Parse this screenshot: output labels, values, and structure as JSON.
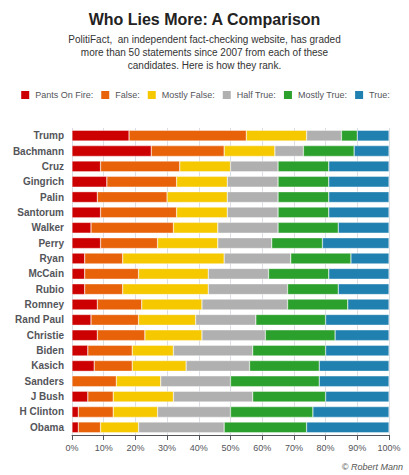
{
  "chart_data": {
    "type": "bar",
    "orientation": "horizontal",
    "stacked": true,
    "title": "Who Lies More: A Comparison",
    "subtitle": "PolitiFact,  an independent fact-checking website, has graded\nmore than 50 statements since 2007 from each of these\ncandidates. Here is how they rank.",
    "categories": [
      "Trump",
      "Bachmann",
      "Cruz",
      "Gingrich",
      "Palin",
      "Santorum",
      "Walker",
      "Perry",
      "Ryan",
      "McCain",
      "Rubio",
      "Romney",
      "Rand Paul",
      "Christie",
      "Biden",
      "Kasich",
      "Sanders",
      "J Bush",
      "H Clinton",
      "Obama"
    ],
    "series": [
      {
        "name": "Pants On Fire:",
        "color": "#cc0000",
        "values": [
          18,
          25,
          9,
          11,
          8,
          9,
          6,
          9,
          4,
          4,
          4,
          8,
          6,
          8,
          5,
          7,
          0,
          5,
          2,
          2
        ]
      },
      {
        "name": "False:",
        "color": "#e8620a",
        "values": [
          37,
          23,
          25,
          22,
          22,
          24,
          26,
          18,
          12,
          17,
          12,
          14,
          15,
          15,
          14,
          12,
          14,
          8,
          11,
          7
        ]
      },
      {
        "name": "Mostly False:",
        "color": "#f5c800",
        "values": [
          19,
          16,
          16,
          16,
          19,
          16,
          14,
          19,
          32,
          22,
          27,
          19,
          18,
          18,
          13,
          17,
          14,
          19,
          14,
          12
        ]
      },
      {
        "name": "Half True:",
        "color": "#b0b0b0",
        "values": [
          11,
          9,
          15,
          16,
          16,
          16,
          19,
          17,
          21,
          19,
          25,
          27,
          19,
          20,
          25,
          20,
          22,
          25,
          23,
          27
        ]
      },
      {
        "name": "Mostly True:",
        "color": "#2ca02c",
        "values": [
          5,
          16,
          16,
          16,
          16,
          16,
          19,
          16,
          19,
          19,
          16,
          19,
          22,
          22,
          23,
          22,
          28,
          23,
          26,
          26
        ]
      },
      {
        "name": "True:",
        "color": "#2080b0",
        "values": [
          10,
          11,
          19,
          19,
          19,
          19,
          16,
          21,
          12,
          19,
          16,
          13,
          20,
          17,
          20,
          22,
          22,
          20,
          24,
          26
        ]
      }
    ],
    "xlim": [
      0,
      100
    ],
    "xticks": [
      {
        "value": 0,
        "label": "0%"
      },
      {
        "value": 10,
        "label": "10%"
      },
      {
        "value": 20,
        "label": "20%"
      },
      {
        "value": 30,
        "label": "30%"
      },
      {
        "value": 40,
        "label": "40%"
      },
      {
        "value": 50,
        "label": "50%"
      },
      {
        "value": 60,
        "label": "60%"
      },
      {
        "value": 70,
        "label": "70%"
      },
      {
        "value": 80,
        "label": "80%"
      },
      {
        "value": 90,
        "label": "90%"
      },
      {
        "value": 100,
        "label": "100%"
      }
    ],
    "grid": true,
    "legend": "top",
    "annotations": [
      "© Robert Mann"
    ]
  }
}
